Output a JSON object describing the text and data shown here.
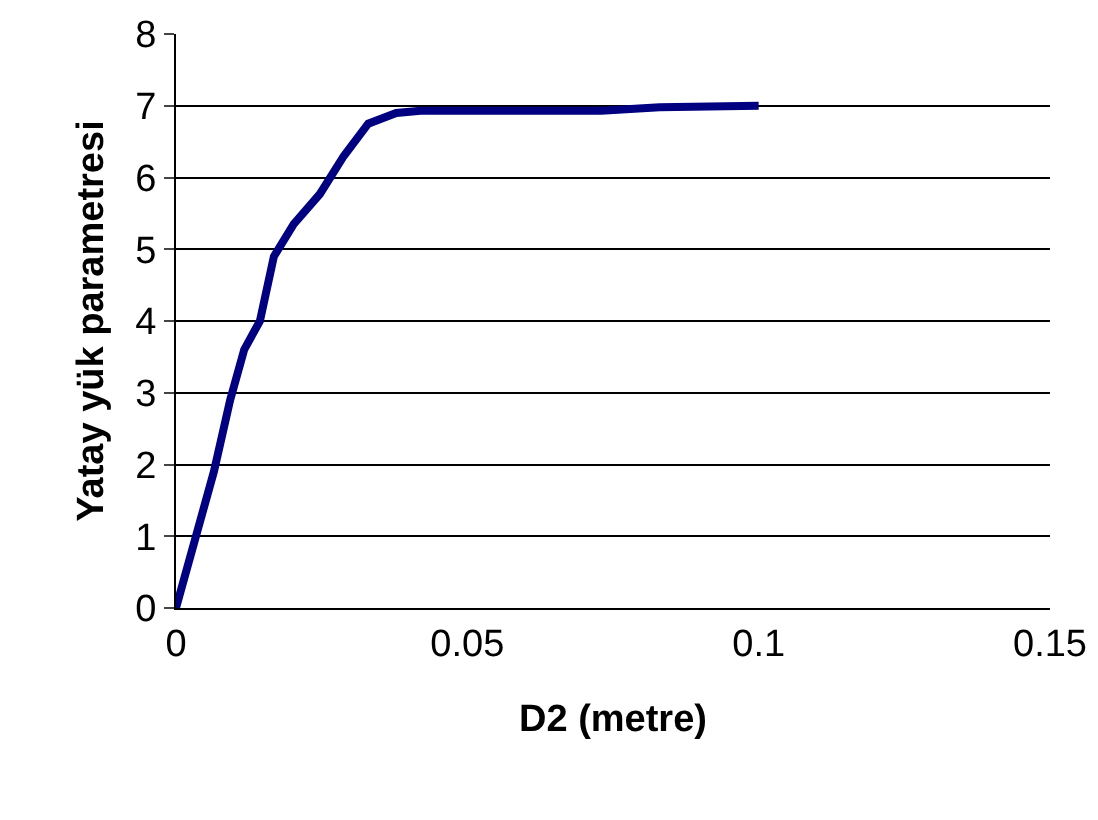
{
  "chart_data": {
    "type": "line",
    "xlabel": "D2 (metre)",
    "ylabel": "Yatay yük parametresi",
    "series": [
      {
        "color": "#000080",
        "x": [
          0,
          0.0065,
          0.0093,
          0.0117,
          0.0144,
          0.0168,
          0.0202,
          0.0247,
          0.0288,
          0.033,
          0.0378,
          0.042,
          0.073,
          0.083,
          0.1
        ],
        "values": [
          0,
          1.9,
          2.9,
          3.6,
          4.0,
          4.9,
          5.35,
          5.77,
          6.3,
          6.75,
          6.9,
          6.93,
          6.93,
          6.98,
          7.0
        ]
      }
    ],
    "xlim": [
      0,
      0.15
    ],
    "xticks": [
      0,
      0.05,
      0.1,
      0.15
    ],
    "ylim": [
      0,
      8
    ],
    "yticks": [
      0,
      1,
      2,
      3,
      4,
      5,
      6,
      7,
      8
    ],
    "grid": "y",
    "marker": "none",
    "line_style": "solid"
  }
}
